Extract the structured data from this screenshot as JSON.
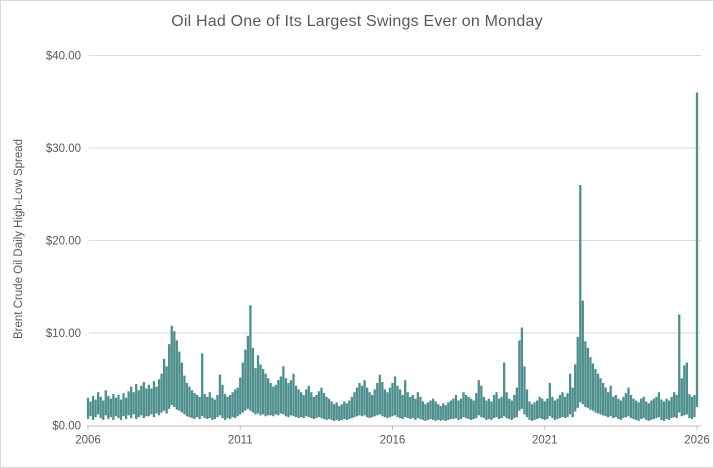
{
  "chart": {
    "title": "Oil Had One of Its Largest Swings Ever on Monday",
    "colors": {
      "series": "#4e8f8e",
      "gridline": "#d9d9d9",
      "axis_line": "#bfbfbf",
      "text": "#595959",
      "border": "#d7d7d7",
      "background": "#ffffff"
    }
  },
  "chart_data": {
    "type": "line",
    "title": "Oil Had One of Its Largest Swings Ever on Monday",
    "xlabel": "",
    "ylabel": "Brent Crude Oil Daily High-Low Spread",
    "xlim": [
      2006,
      2026
    ],
    "ylim": [
      0,
      40
    ],
    "x_tick_values": [
      2006,
      2011,
      2016,
      2021,
      2026
    ],
    "x_tick_labels": [
      "2006",
      "2011",
      "2016",
      "2021",
      "2026"
    ],
    "y_tick_values": [
      0,
      10,
      20,
      30,
      40
    ],
    "y_tick_labels": [
      "$0.00",
      "$10.00",
      "$20.00",
      "$30.00",
      "$40.00"
    ],
    "grid": "horizontal",
    "legend": "none",
    "notable_points": [
      {
        "x": 2008.8,
        "y": 10.8
      },
      {
        "x": 2011.4,
        "y": 13.0
      },
      {
        "x": 2019.7,
        "y": 6.8
      },
      {
        "x": 2020.3,
        "y": 10.6
      },
      {
        "x": 2022.2,
        "y": 26.0
      },
      {
        "x": 2022.3,
        "y": 13.5
      },
      {
        "x": 2025.4,
        "y": 12.0
      },
      {
        "x": 2026.0,
        "y": 36.0
      }
    ],
    "series": [
      {
        "name": "Brent Crude Oil Daily High-Low Spread",
        "sampling": "monthly envelope (min/max of daily spread, USD)",
        "start_year": 2006,
        "months_per_point": 1,
        "max": [
          3.0,
          2.6,
          3.2,
          2.8,
          3.6,
          3.1,
          2.7,
          3.8,
          3.2,
          2.9,
          3.4,
          3.0,
          3.3,
          2.8,
          3.5,
          3.0,
          3.7,
          4.2,
          3.6,
          4.5,
          3.8,
          4.3,
          4.7,
          4.0,
          4.4,
          4.0,
          4.8,
          4.2,
          5.0,
          5.6,
          7.2,
          6.4,
          8.8,
          10.8,
          10.2,
          9.2,
          8.0,
          6.8,
          5.4,
          4.6,
          4.2,
          3.8,
          3.5,
          3.3,
          3.1,
          7.8,
          3.4,
          3.1,
          3.6,
          3.0,
          2.8,
          3.3,
          5.5,
          4.4,
          3.4,
          3.1,
          3.3,
          3.6,
          3.9,
          4.1,
          5.2,
          6.8,
          8.2,
          9.7,
          13.0,
          8.4,
          6.2,
          7.6,
          6.6,
          6.1,
          5.6,
          5.1,
          4.6,
          4.2,
          4.4,
          4.9,
          5.3,
          6.4,
          5.1,
          4.6,
          4.9,
          5.6,
          4.3,
          3.9,
          3.6,
          3.3,
          3.9,
          4.3,
          3.6,
          3.1,
          3.3,
          3.7,
          4.1,
          3.5,
          3.1,
          2.9,
          2.6,
          2.3,
          2.5,
          2.1,
          2.3,
          2.6,
          2.4,
          2.7,
          3.1,
          3.6,
          4.1,
          4.6,
          4.3,
          4.9,
          4.1,
          3.6,
          3.3,
          3.9,
          4.6,
          5.5,
          4.7,
          3.9,
          3.6,
          4.1,
          4.6,
          5.3,
          4.3,
          3.9,
          3.3,
          4.9,
          3.6,
          3.1,
          3.3,
          2.9,
          3.6,
          3.1,
          2.6,
          2.3,
          2.5,
          2.7,
          2.9,
          2.6,
          2.3,
          2.1,
          2.4,
          2.2,
          2.5,
          2.7,
          2.9,
          3.3,
          2.7,
          2.9,
          3.6,
          3.3,
          3.1,
          2.9,
          2.7,
          3.5,
          4.9,
          4.3,
          3.1,
          2.7,
          2.9,
          2.6,
          3.3,
          3.6,
          2.9,
          3.1,
          6.8,
          3.6,
          2.9,
          2.7,
          3.3,
          4.1,
          9.2,
          10.6,
          6.4,
          3.9,
          2.6,
          2.3,
          2.5,
          2.7,
          3.1,
          2.9,
          2.6,
          2.9,
          4.6,
          3.1,
          2.7,
          2.9,
          3.3,
          3.6,
          3.1,
          3.5,
          5.6,
          4.1,
          6.6,
          9.6,
          26.0,
          13.5,
          9.1,
          8.4,
          7.4,
          6.7,
          6.1,
          5.6,
          5.1,
          4.6,
          4.1,
          3.6,
          4.3,
          3.1,
          3.3,
          2.9,
          2.7,
          3.1,
          3.5,
          4.1,
          3.3,
          2.9,
          2.7,
          2.5,
          2.9,
          3.1,
          2.6,
          2.4,
          2.7,
          2.9,
          3.1,
          3.6,
          2.8,
          2.6,
          2.9,
          2.7,
          3.1,
          3.6,
          3.3,
          12.0,
          5.1,
          6.5,
          6.8,
          3.4,
          3.1,
          3.3,
          36.0
        ],
        "min": [
          0.7,
          1.0,
          0.6,
          0.9,
          1.2,
          0.8,
          0.6,
          1.1,
          0.7,
          0.9,
          0.6,
          1.0,
          0.8,
          0.6,
          1.0,
          0.7,
          1.1,
          0.8,
          1.2,
          0.7,
          0.9,
          1.1,
          0.8,
          1.0,
          1.0,
          1.2,
          0.9,
          1.3,
          1.1,
          1.4,
          1.6,
          1.3,
          1.8,
          2.2,
          2.0,
          1.7,
          1.6,
          1.4,
          1.2,
          1.0,
          0.9,
          0.8,
          0.7,
          0.9,
          0.7,
          1.0,
          0.8,
          0.7,
          0.8,
          0.6,
          0.7,
          0.9,
          1.1,
          0.8,
          0.6,
          0.8,
          0.7,
          0.9,
          0.8,
          1.0,
          1.2,
          1.4,
          1.6,
          1.8,
          1.6,
          1.4,
          1.2,
          1.3,
          1.1,
          1.2,
          1.0,
          1.1,
          1.1,
          1.0,
          1.2,
          1.1,
          1.3,
          1.2,
          1.0,
          0.9,
          1.1,
          1.0,
          0.9,
          0.8,
          0.9,
          0.8,
          1.0,
          0.9,
          0.8,
          0.7,
          0.8,
          0.9,
          0.8,
          0.7,
          0.6,
          0.7,
          0.6,
          0.5,
          0.6,
          0.5,
          0.6,
          0.7,
          0.6,
          0.7,
          0.8,
          0.9,
          1.0,
          1.1,
          1.0,
          1.1,
          0.9,
          0.8,
          0.9,
          1.0,
          1.1,
          1.2,
          1.0,
          0.9,
          0.8,
          0.9,
          1.0,
          1.1,
          0.9,
          0.8,
          0.7,
          0.9,
          0.8,
          0.7,
          0.8,
          0.6,
          0.8,
          0.7,
          0.6,
          0.5,
          0.6,
          0.7,
          0.6,
          0.5,
          0.6,
          0.5,
          0.6,
          0.5,
          0.6,
          0.7,
          0.7,
          0.8,
          0.6,
          0.7,
          0.9,
          0.8,
          0.7,
          0.6,
          0.7,
          0.8,
          1.1,
          0.9,
          0.8,
          0.6,
          0.7,
          0.6,
          0.8,
          0.9,
          0.7,
          0.8,
          1.0,
          0.8,
          0.7,
          0.6,
          0.8,
          0.9,
          1.6,
          1.8,
          1.2,
          0.9,
          0.6,
          0.5,
          0.6,
          0.7,
          0.8,
          0.7,
          0.6,
          0.7,
          1.0,
          0.8,
          0.6,
          0.7,
          0.8,
          0.9,
          0.8,
          0.9,
          1.2,
          0.9,
          1.5,
          1.9,
          2.5,
          2.3,
          2.0,
          1.9,
          1.7,
          1.6,
          1.4,
          1.3,
          1.2,
          1.1,
          1.0,
          0.9,
          1.0,
          0.8,
          0.9,
          0.7,
          0.6,
          0.8,
          0.9,
          1.0,
          0.8,
          0.7,
          0.6,
          0.5,
          0.7,
          0.8,
          0.6,
          0.5,
          0.6,
          0.7,
          0.8,
          0.9,
          0.6,
          0.5,
          0.7,
          0.6,
          0.8,
          0.9,
          0.8,
          1.4,
          1.0,
          1.1,
          1.2,
          0.8,
          0.7,
          0.9,
          2.0
        ]
      }
    ]
  }
}
